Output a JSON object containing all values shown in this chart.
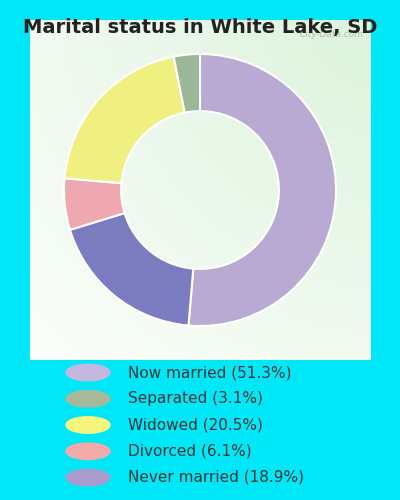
{
  "title": "Marital status in White Lake, SD",
  "slices": [
    51.3,
    18.9,
    6.1,
    20.5,
    3.1
  ],
  "labels": [
    "Now married (51.3%)",
    "Separated (3.1%)",
    "Widowed (20.5%)",
    "Divorced (6.1%)",
    "Never married (18.9%)"
  ],
  "legend_colors": [
    "#c4b8e0",
    "#a8b89a",
    "#f5f580",
    "#f5aaaa",
    "#a89ccc"
  ],
  "pie_colors": [
    "#b8aad0",
    "#7878b8",
    "#f0aab0",
    "#f0f080",
    "#9ab898"
  ],
  "bg_cyan": "#00e8f8",
  "bg_chart_color": "#d8eed8",
  "title_fontsize": 14,
  "legend_fontsize": 11,
  "start_angle": 90,
  "watermark": "City-Data.com"
}
